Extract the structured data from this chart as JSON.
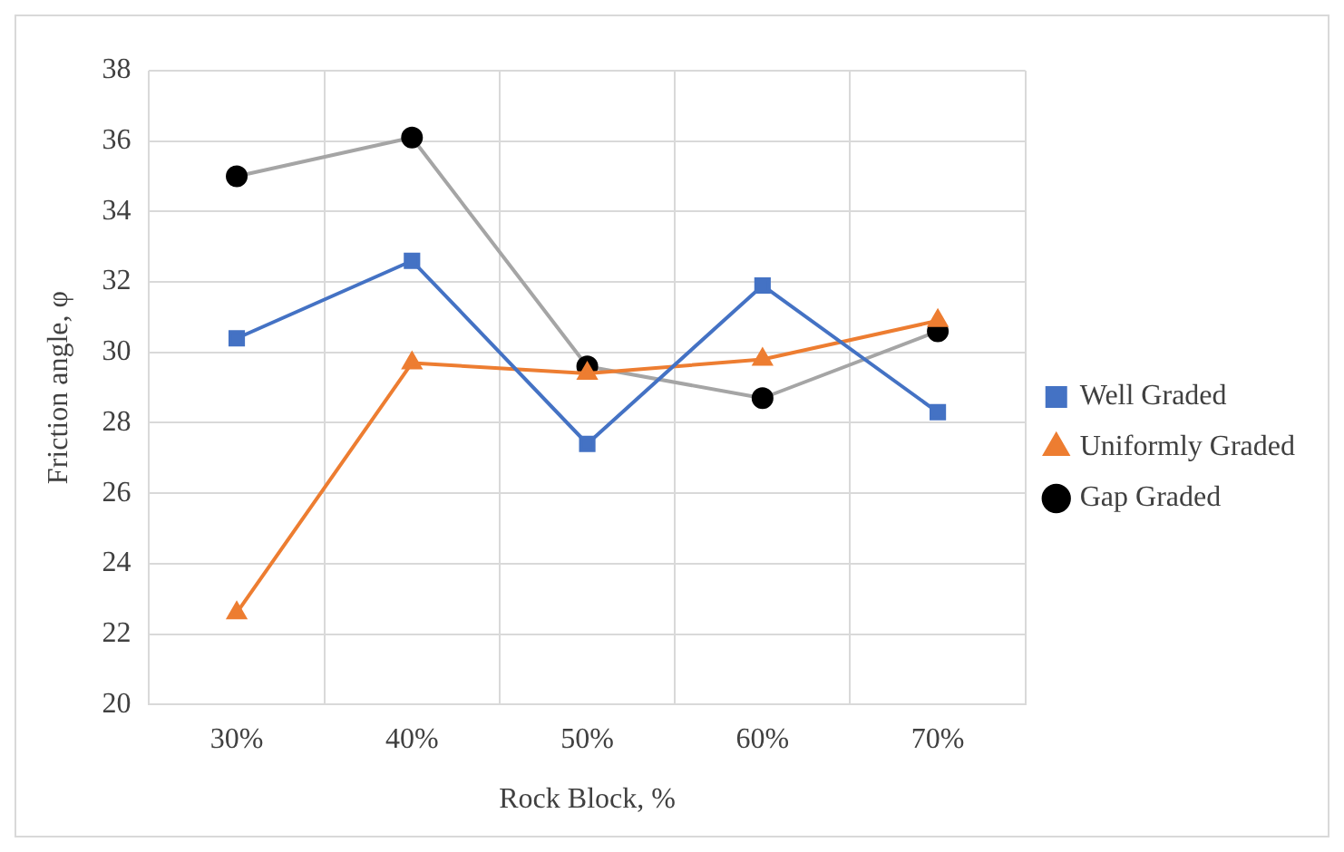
{
  "chart_data": {
    "type": "line",
    "xlabel": "Rock Block, %",
    "ylabel": "Friction angle, φ",
    "categories": [
      "30%",
      "40%",
      "50%",
      "60%",
      "70%"
    ],
    "series": [
      {
        "name": "Well Graded",
        "color": "#4472c4",
        "marker": "square",
        "values": [
          30.4,
          32.6,
          27.4,
          31.9,
          28.3
        ]
      },
      {
        "name": "Uniformly Graded",
        "color": "#ed7d31",
        "marker": "triangle",
        "values": [
          22.6,
          29.7,
          29.4,
          29.8,
          30.9
        ]
      },
      {
        "name": "Gap Graded",
        "color": "#a5a5a5",
        "marker": "circle",
        "colors": [
          "#000000",
          "#000000",
          "#000000",
          "#000000",
          "#000000"
        ],
        "values": [
          35.0,
          36.1,
          29.6,
          28.7,
          30.6
        ]
      }
    ],
    "ylim": [
      20,
      38
    ],
    "yticks": [
      20,
      22,
      24,
      26,
      28,
      30,
      32,
      34,
      36,
      38
    ],
    "grid": true,
    "legend": "right"
  }
}
